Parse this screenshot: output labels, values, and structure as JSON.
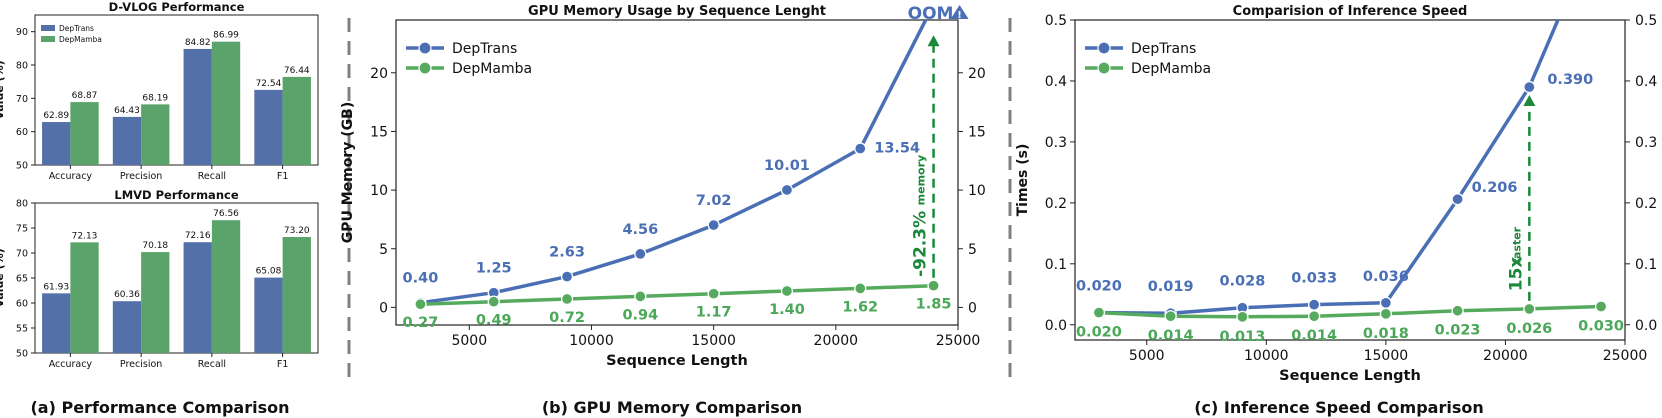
{
  "colors": {
    "blue": "#5470a8",
    "green": "#5aa36a",
    "line_blue": "#4a6fb5",
    "line_green": "#56aa5e",
    "label_blue": "#4a6fb5",
    "label_green": "#4aa858",
    "annot_green": "#1a8a3a",
    "divider": "#808080"
  },
  "panels": {
    "a": {
      "caption": "(a) Performance Comparison",
      "legend": [
        "DepTrans",
        "DepMamba"
      ]
    },
    "b": {
      "caption": "(b) GPU Memory Comparison"
    },
    "c": {
      "caption": "(c) Inference Speed Comparison"
    }
  },
  "chart_data": [
    {
      "id": "dvlog",
      "type": "bar",
      "title": "D-VLOG Performance",
      "xlabel": "",
      "ylabel": "Value (%)",
      "categories": [
        "Accuracy",
        "Precision",
        "Recall",
        "F1"
      ],
      "ylim": [
        50,
        95
      ],
      "yticks": [
        "50",
        "60",
        "70",
        "80",
        "90"
      ],
      "yticks_values": [
        50,
        60,
        70,
        80,
        90
      ],
      "series": [
        {
          "name": "DepTrans",
          "values": [
            62.89,
            64.43,
            84.82,
            72.54
          ],
          "labels": [
            "62.89",
            "64.43",
            "84.82",
            "72.54"
          ]
        },
        {
          "name": "DepMamba",
          "values": [
            68.87,
            68.19,
            86.99,
            76.44
          ],
          "labels": [
            "68.87",
            "68.19",
            "86.99",
            "76.44"
          ]
        }
      ],
      "legend": "top-left"
    },
    {
      "id": "lmvd",
      "type": "bar",
      "title": "LMVD Performance",
      "xlabel": "",
      "ylabel": "Value (%)",
      "categories": [
        "Accuracy",
        "Precision",
        "Recall",
        "F1"
      ],
      "ylim": [
        50,
        80
      ],
      "yticks": [
        "50",
        "55",
        "60",
        "65",
        "70",
        "75",
        "80"
      ],
      "yticks_values": [
        50,
        55,
        60,
        65,
        70,
        75,
        80
      ],
      "series": [
        {
          "name": "DepTrans",
          "values": [
            61.93,
            60.36,
            72.16,
            65.08
          ],
          "labels": [
            "61.93",
            "60.36",
            "72.16",
            "65.08"
          ]
        },
        {
          "name": "DepMamba",
          "values": [
            72.13,
            70.18,
            76.56,
            73.2
          ],
          "labels": [
            "72.13",
            "70.18",
            "76.56",
            "73.20"
          ]
        }
      ]
    },
    {
      "id": "gpu",
      "type": "line",
      "title": "GPU Memory Usage by Sequence Lenght",
      "xlabel": "Sequence Length",
      "ylabel": "GPU Memory (GB)",
      "xlim": [
        2000,
        25000
      ],
      "ylim": [
        -1.5,
        24.5
      ],
      "xticks": [
        "5000",
        "10000",
        "15000",
        "20000",
        "25000"
      ],
      "xticks_values": [
        5000,
        10000,
        15000,
        20000,
        25000
      ],
      "yticks": [
        "0",
        "5",
        "10",
        "15",
        "20"
      ],
      "yticks_values": [
        0,
        5,
        10,
        15,
        20
      ],
      "x": [
        3000,
        6000,
        9000,
        12000,
        15000,
        18000,
        21000,
        24000
      ],
      "series": [
        {
          "name": "DepTrans",
          "x": [
            3000,
            6000,
            9000,
            12000,
            15000,
            18000,
            21000
          ],
          "values": [
            0.4,
            1.25,
            2.63,
            4.56,
            7.02,
            10.01,
            13.54
          ],
          "labels": [
            "0.40",
            "1.25",
            "2.63",
            "4.56",
            "7.02",
            "10.01",
            "13.54"
          ]
        },
        {
          "name": "DepMamba",
          "x": [
            3000,
            6000,
            9000,
            12000,
            15000,
            18000,
            21000,
            24000
          ],
          "values": [
            0.27,
            0.49,
            0.72,
            0.94,
            1.17,
            1.4,
            1.62,
            1.85
          ],
          "labels": [
            "0.27",
            "0.49",
            "0.72",
            "0.94",
            "1.17",
            "1.40",
            "1.62",
            "1.85"
          ]
        }
      ],
      "oom_label": "OOM",
      "warning_glyph": "!",
      "annotation_big": "-92.3%",
      "annotation_small": "memory",
      "legend": "top-left"
    },
    {
      "id": "speed",
      "type": "line",
      "title": "Comparision of Inference Speed",
      "xlabel": "Sequence Length",
      "ylabel": "Times (s)",
      "xlim": [
        2000,
        25000
      ],
      "ylim": [
        -0.025,
        0.5
      ],
      "xticks": [
        "5000",
        "10000",
        "15000",
        "20000",
        "25000"
      ],
      "xticks_values": [
        5000,
        10000,
        15000,
        20000,
        25000
      ],
      "yticks": [
        "0.0",
        "0.1",
        "0.2",
        "0.3",
        "0.4",
        "0.5"
      ],
      "yticks_values": [
        0,
        0.1,
        0.2,
        0.3,
        0.4,
        0.5
      ],
      "x": [
        3000,
        6000,
        9000,
        12000,
        15000,
        18000,
        21000,
        24000
      ],
      "series": [
        {
          "name": "DepTrans",
          "x": [
            3000,
            6000,
            9000,
            12000,
            15000,
            18000,
            21000
          ],
          "values": [
            0.02,
            0.019,
            0.028,
            0.033,
            0.036,
            0.206,
            0.39
          ],
          "labels": [
            "0.020",
            "0.019",
            "0.028",
            "0.033",
            "0.036",
            "0.206",
            "0.390"
          ]
        },
        {
          "name": "DepMamba",
          "x": [
            3000,
            6000,
            9000,
            12000,
            15000,
            18000,
            21000,
            24000
          ],
          "values": [
            0.02,
            0.014,
            0.013,
            0.014,
            0.018,
            0.023,
            0.026,
            0.03
          ],
          "labels": [
            "0.020",
            "0.014",
            "0.013",
            "0.014",
            "0.018",
            "0.023",
            "0.026",
            "0.030"
          ]
        }
      ],
      "annotation_big": "15x",
      "annotation_small": "faster",
      "legend": "top-left"
    }
  ]
}
